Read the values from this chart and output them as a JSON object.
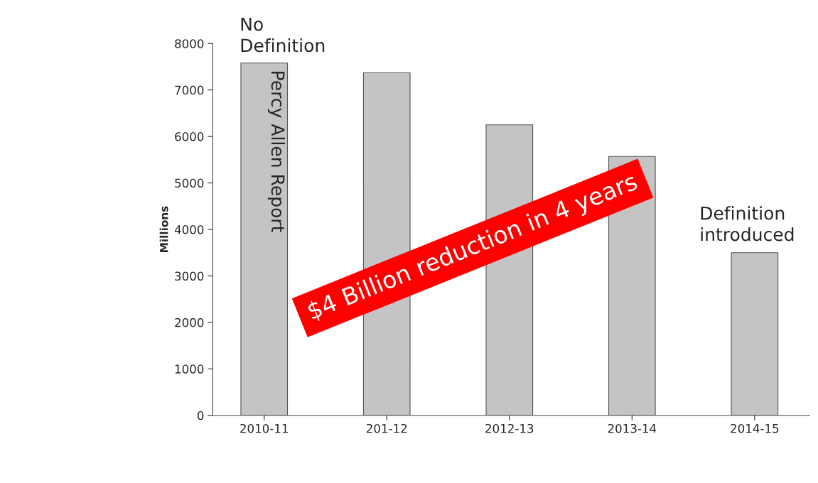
{
  "chart_data": {
    "type": "bar",
    "ylabel": "Millions",
    "categories": [
      "2010-11",
      "201-12",
      "2012-13",
      "2013-14",
      "2014-15"
    ],
    "values": [
      7580,
      7370,
      6250,
      5570,
      3500
    ],
    "color": "#c4c4c4",
    "ylim": [
      0,
      8000
    ],
    "yticks": [
      0,
      1000,
      2000,
      3000,
      4000,
      5000,
      6000,
      7000,
      8000
    ],
    "grid": false,
    "legend": false,
    "annotations": [
      "No\nDefinition",
      "Percy Allen Report",
      "$4 Billion reduction in 4 years",
      "Definition\nintroduced"
    ]
  }
}
